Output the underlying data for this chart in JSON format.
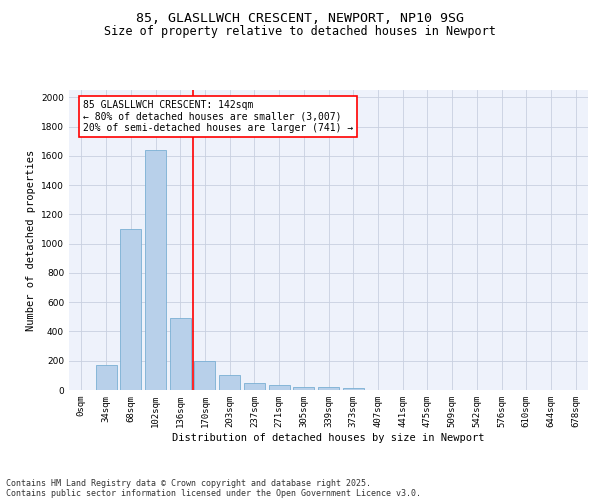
{
  "title1": "85, GLASLLWCH CRESCENT, NEWPORT, NP10 9SG",
  "title2": "Size of property relative to detached houses in Newport",
  "xlabel": "Distribution of detached houses by size in Newport",
  "ylabel": "Number of detached properties",
  "footnote1": "Contains HM Land Registry data © Crown copyright and database right 2025.",
  "footnote2": "Contains public sector information licensed under the Open Government Licence v3.0.",
  "bar_labels": [
    "0sqm",
    "34sqm",
    "68sqm",
    "102sqm",
    "136sqm",
    "170sqm",
    "203sqm",
    "237sqm",
    "271sqm",
    "305sqm",
    "339sqm",
    "373sqm",
    "407sqm",
    "441sqm",
    "475sqm",
    "509sqm",
    "542sqm",
    "576sqm",
    "610sqm",
    "644sqm",
    "678sqm"
  ],
  "bar_values": [
    0,
    170,
    1100,
    1640,
    490,
    200,
    105,
    45,
    35,
    20,
    20,
    12,
    0,
    0,
    0,
    0,
    0,
    0,
    0,
    0,
    0
  ],
  "bar_color": "#b8d0ea",
  "bar_edge_color": "#7aafd4",
  "ylim": [
    0,
    2050
  ],
  "yticks": [
    0,
    200,
    400,
    600,
    800,
    1000,
    1200,
    1400,
    1600,
    1800,
    2000
  ],
  "vline_x_index": 4,
  "vline_color": "red",
  "annotation_box_text": "85 GLASLLWCH CRESCENT: 142sqm\n← 80% of detached houses are smaller (3,007)\n20% of semi-detached houses are larger (741) →",
  "bg_color": "#eef2fb",
  "grid_color": "#c8d0e0",
  "title_fontsize": 9.5,
  "subtitle_fontsize": 8.5,
  "axis_label_fontsize": 7.5,
  "tick_fontsize": 6.5,
  "annotation_fontsize": 7,
  "footnote_fontsize": 6
}
